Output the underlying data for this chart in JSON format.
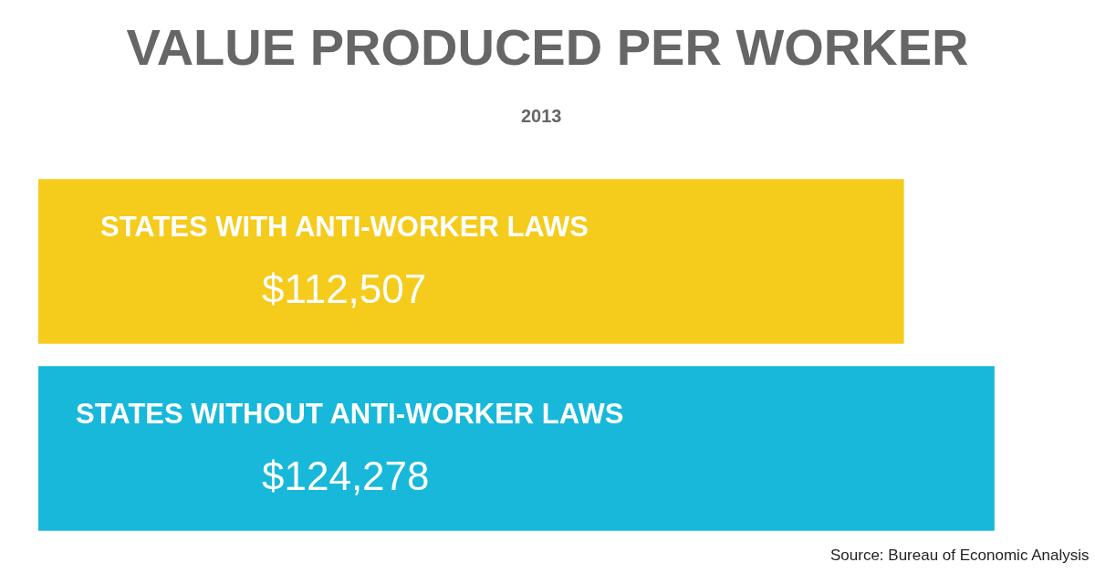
{
  "chart_data": {
    "type": "bar",
    "orientation": "horizontal",
    "title": "VALUE PRODUCED PER WORKER",
    "subtitle": "2013",
    "categories": [
      "STATES WITH ANTI-WORKER LAWS",
      "STATES WITHOUT ANTI-WORKER LAWS"
    ],
    "values": [
      112507,
      124278
    ],
    "colors": [
      "#f5cb1c",
      "#18b8da"
    ],
    "value_labels": [
      "$112,507",
      "$124,278"
    ],
    "tick_labels": false,
    "grid": false,
    "legend": false,
    "annotations": [
      "Source: Bureau of Economic Analysis"
    ]
  }
}
